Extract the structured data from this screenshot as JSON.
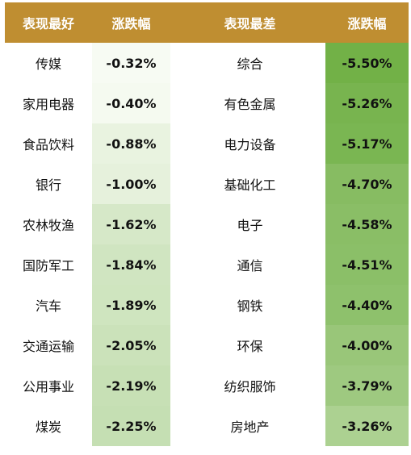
{
  "chart_data": {
    "type": "table",
    "headers": {
      "best_name": "表现最好",
      "best_change": "涨跌幅",
      "worst_name": "表现最差",
      "worst_change": "涨跌幅"
    },
    "best": [
      {
        "name": "传媒",
        "change": "-0.32%",
        "value": -0.32
      },
      {
        "name": "家用电器",
        "change": "-0.40%",
        "value": -0.4
      },
      {
        "name": "食品饮料",
        "change": "-0.88%",
        "value": -0.88
      },
      {
        "name": "银行",
        "change": "-1.00%",
        "value": -1.0
      },
      {
        "name": "农林牧渔",
        "change": "-1.62%",
        "value": -1.62
      },
      {
        "name": "国防军工",
        "change": "-1.84%",
        "value": -1.84
      },
      {
        "name": "汽车",
        "change": "-1.89%",
        "value": -1.89
      },
      {
        "name": "交通运输",
        "change": "-2.05%",
        "value": -2.05
      },
      {
        "name": "公用事业",
        "change": "-2.19%",
        "value": -2.19
      },
      {
        "name": "煤炭",
        "change": "-2.25%",
        "value": -2.25
      }
    ],
    "worst": [
      {
        "name": "综合",
        "change": "-5.50%",
        "value": -5.5
      },
      {
        "name": "有色金属",
        "change": "-5.26%",
        "value": -5.26
      },
      {
        "name": "电力设备",
        "change": "-5.17%",
        "value": -5.17
      },
      {
        "name": "基础化工",
        "change": "-4.70%",
        "value": -4.7
      },
      {
        "name": "电子",
        "change": "-4.58%",
        "value": -4.58
      },
      {
        "name": "通信",
        "change": "-4.51%",
        "value": -4.51
      },
      {
        "name": "钢铁",
        "change": "-4.40%",
        "value": -4.4
      },
      {
        "name": "环保",
        "change": "-4.00%",
        "value": -4.0
      },
      {
        "name": "纺织服饰",
        "change": "-3.79%",
        "value": -3.79
      },
      {
        "name": "房地产",
        "change": "-3.26%",
        "value": -3.26
      }
    ],
    "colors": {
      "header_bg": "#bf8e31",
      "header_text": "#ffffff",
      "scale_light": "#f7fbf3",
      "scale_dark": "#72b147"
    }
  }
}
